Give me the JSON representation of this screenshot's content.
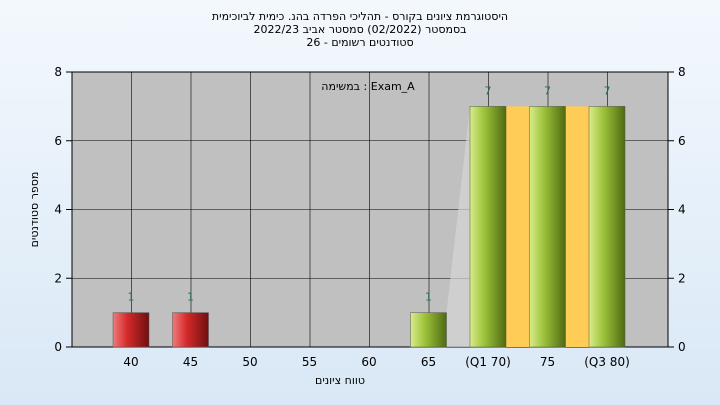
{
  "title": {
    "line1": "היסטוגרמת ציונים בקורס - תהליכי הפרדה בהנ. כימית לביוכימית",
    "line2": "בסמסטר  (02/2022)  סמסטר אביב 2022/23",
    "line3": "סטודנטים רשומים - 26"
  },
  "chart_data": {
    "type": "bar",
    "title": "היסטוגרמת ציונים בקורס - תהליכי הפרדה בהנ. כימית לביוכימית",
    "xlabel": "טווח ציונים",
    "ylabel": "מספר סטודנטים",
    "ylim": [
      0,
      8
    ],
    "yticks": [
      0,
      2,
      4,
      6,
      8
    ],
    "categories": [
      "40",
      "45",
      "50",
      "55",
      "60",
      "65",
      "(Q1 70)",
      "75",
      "(Q3 80)"
    ],
    "values": [
      1,
      1,
      0,
      0,
      0,
      1,
      7,
      7,
      7
    ],
    "bar_colors": [
      "#d42a2a",
      "#d42a2a",
      null,
      null,
      null,
      "#9cc23a",
      "#9cc23a",
      "#9cc23a",
      "#9cc23a"
    ],
    "legend": "במשימה : Exam_A",
    "quartile_band_color": "#ffcc55",
    "grid": true
  },
  "colors": {
    "plot_bg": "#c0c0c0",
    "red_bar": "#d42a2a",
    "green_bar": "#9cc23a",
    "quartile_band": "#ffcc55"
  }
}
